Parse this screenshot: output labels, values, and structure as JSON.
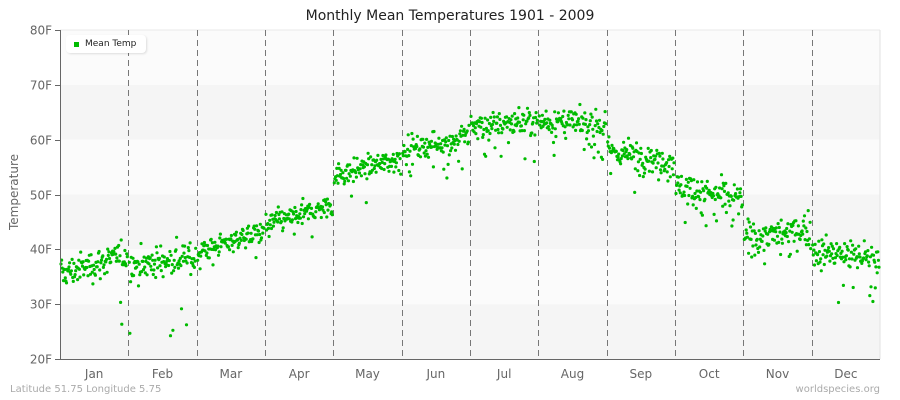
{
  "chart": {
    "title": "Monthly Mean Temperatures 1901 - 2009",
    "ylabel": "Temperature",
    "footer_left": "Latitude 51.75 Longitude 5.75",
    "footer_right": "worldspecies.org",
    "legend_label": "Mean Temp",
    "point_color": "#00bb00"
  },
  "chart_data": {
    "type": "scatter",
    "title": "Monthly Mean Temperatures 1901 - 2009",
    "xlabel": "",
    "ylabel": "Temperature",
    "ylim": [
      20,
      80
    ],
    "yticks": [
      "20F",
      "30F",
      "40F",
      "50F",
      "60F",
      "70F",
      "80F"
    ],
    "categories": [
      "Jan",
      "Feb",
      "Mar",
      "Apr",
      "May",
      "Jun",
      "Jul",
      "Aug",
      "Sep",
      "Oct",
      "Nov",
      "Dec"
    ],
    "legend": [
      "Mean Temp"
    ],
    "legend_position": "top-left",
    "grid": "horizontal alternating bands, dashed vertical month separators",
    "years": [
      1901,
      2009
    ],
    "points_per_month": 109,
    "series": [
      {
        "name": "Mean Temp",
        "monthly_summary": [
          {
            "month": "Jan",
            "mean": 37.0,
            "min": 22.5,
            "max": 44.0,
            "start": 35.5,
            "end": 39.0
          },
          {
            "month": "Feb",
            "mean": 38.0,
            "min": 24.0,
            "max": 45.0,
            "start": 37.0,
            "end": 38.5
          },
          {
            "month": "Mar",
            "mean": 41.5,
            "min": 35.5,
            "max": 46.5,
            "start": 39.5,
            "end": 43.5
          },
          {
            "month": "Apr",
            "mean": 46.0,
            "min": 41.0,
            "max": 52.0,
            "start": 44.5,
            "end": 48.0
          },
          {
            "month": "May",
            "mean": 54.5,
            "min": 47.5,
            "max": 60.0,
            "start": 53.5,
            "end": 56.5
          },
          {
            "month": "Jun",
            "mean": 59.0,
            "min": 53.0,
            "max": 65.5,
            "start": 58.0,
            "end": 60.5
          },
          {
            "month": "Jul",
            "mean": 63.0,
            "min": 56.0,
            "max": 72.0,
            "start": 62.5,
            "end": 63.5
          },
          {
            "month": "Aug",
            "mean": 63.0,
            "min": 56.0,
            "max": 69.5,
            "start": 63.5,
            "end": 62.5
          },
          {
            "month": "Sep",
            "mean": 57.0,
            "min": 50.0,
            "max": 64.0,
            "start": 58.0,
            "end": 56.0
          },
          {
            "month": "Oct",
            "mean": 50.0,
            "min": 43.0,
            "max": 57.5,
            "start": 51.5,
            "end": 49.0
          },
          {
            "month": "Nov",
            "mean": 43.0,
            "min": 36.0,
            "max": 50.0,
            "start": 42.0,
            "end": 43.5
          },
          {
            "month": "Dec",
            "mean": 39.0,
            "min": 30.0,
            "max": 46.5,
            "start": 39.5,
            "end": 38.5
          }
        ]
      }
    ]
  }
}
